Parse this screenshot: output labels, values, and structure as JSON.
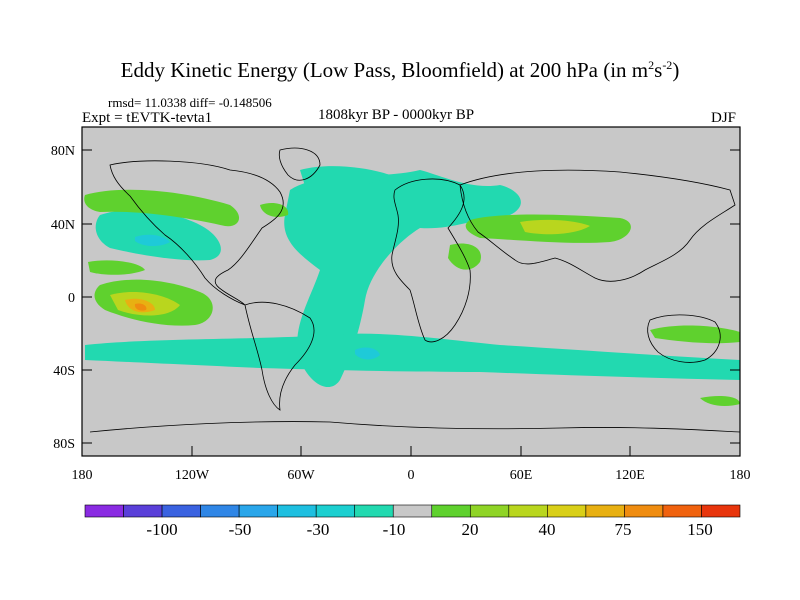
{
  "title": {
    "main": "Eddy Kinetic Energy (Low Pass, Bloomfield) at 200 hPa (in m",
    "sup1": "2",
    "mid": "s",
    "sup2": "-2",
    "end": ")"
  },
  "stats": "rmsd= 11.0338 diff= -0.148506",
  "experiment": "Expt = tEVTK-tevta1",
  "period": "1808kyr BP - 0000kyr BP",
  "season": "DJF",
  "lat_ticks": [
    "80N",
    "40N",
    "0",
    "40S",
    "80S"
  ],
  "lon_ticks": [
    "180",
    "120W",
    "60W",
    "0",
    "60E",
    "120E",
    "180"
  ],
  "colorbar": {
    "labels": [
      "-100",
      "-50",
      "-30",
      "-10",
      "20",
      "40",
      "75",
      "150"
    ],
    "colors": [
      "#8a2be2",
      "#5a3fd9",
      "#3a62e0",
      "#2f86e6",
      "#2aa6ea",
      "#1ebfe0",
      "#1ccfd0",
      "#22d9b0",
      "#c8c8c8",
      "#5fd12e",
      "#8fd426",
      "#b9d61e",
      "#d9cf18",
      "#e8b012",
      "#ef8c10",
      "#f0620e",
      "#e8350c"
    ]
  },
  "colors": {
    "background": "#c8c8c8",
    "land_outline": "#000000"
  }
}
